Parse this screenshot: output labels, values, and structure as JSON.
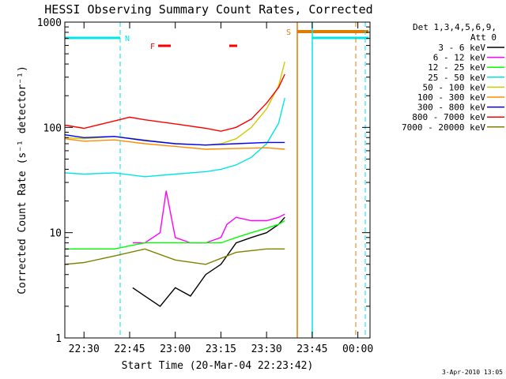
{
  "chart_data": {
    "type": "line",
    "title": "HESSI Observing Summary Count Rates, Corrected",
    "xlabel": "Start Time (20-Mar-04 22:23:42)",
    "ylabel": "Corrected Count Rate (s⁻¹ detector⁻¹)",
    "xlim": [
      "22:23:42",
      "00:04:00"
    ],
    "ylim": [
      1,
      1000
    ],
    "yscale": "log",
    "x_ticks": [
      "22:30",
      "22:45",
      "23:00",
      "23:15",
      "23:30",
      "23:45",
      "00:00"
    ],
    "y_ticks": [
      "1",
      "10",
      "100",
      "1000"
    ],
    "legend_header": [
      "Det 1,3,4,5,6,9,",
      "Att 0"
    ],
    "legend_position": "right",
    "footer": "3-Apr-2010 13:05",
    "flags": [
      {
        "label": "N",
        "color": "#00e5e5"
      },
      {
        "label": "F",
        "color": "#ff0000"
      },
      {
        "label": "S",
        "color": "#e07b00"
      }
    ],
    "series": [
      {
        "name": "3 - 6 keV",
        "color": "#000000",
        "x": [
          "22:46",
          "22:50",
          "22:55",
          "23:00",
          "23:05",
          "23:10",
          "23:15",
          "23:20",
          "23:25",
          "23:30",
          "23:34",
          "23:36"
        ],
        "y": [
          3,
          2.5,
          2,
          3,
          2.5,
          4,
          5,
          8,
          9,
          10,
          12,
          14
        ]
      },
      {
        "name": "6 - 12 keV",
        "color": "#ff00ff",
        "x": [
          "22:46",
          "22:50",
          "22:55",
          "22:57",
          "23:00",
          "23:05",
          "23:10",
          "23:15",
          "23:17",
          "23:20",
          "23:25",
          "23:30",
          "23:34",
          "23:36"
        ],
        "y": [
          8,
          8,
          10,
          25,
          9,
          8,
          8,
          9,
          12,
          14,
          13,
          13,
          14,
          15
        ]
      },
      {
        "name": "12 - 25 keV",
        "color": "#00ff00",
        "x": [
          "22:23:42",
          "22:30",
          "22:40",
          "22:45",
          "22:50",
          "23:00",
          "23:10",
          "23:15",
          "23:20",
          "23:25",
          "23:30",
          "23:34",
          "23:36"
        ],
        "y": [
          7,
          7,
          7,
          7.5,
          8,
          8,
          8,
          8,
          9,
          10,
          11,
          12,
          13
        ]
      },
      {
        "name": "25 - 50 keV",
        "color": "#00e5e5",
        "x": [
          "22:23:42",
          "22:30",
          "22:40",
          "22:50",
          "23:00",
          "23:10",
          "23:15",
          "23:20",
          "23:25",
          "23:30",
          "23:34",
          "23:36"
        ],
        "y": [
          37,
          36,
          37,
          34,
          36,
          38,
          40,
          44,
          52,
          70,
          110,
          190
        ]
      },
      {
        "name": "50 - 100 keV",
        "color": "#cccc00",
        "x": [
          "22:23:42",
          "22:30",
          "22:40",
          "22:50",
          "23:00",
          "23:10",
          "23:15",
          "23:20",
          "23:25",
          "23:30",
          "23:34",
          "23:36"
        ],
        "y": [
          80,
          78,
          82,
          76,
          70,
          68,
          70,
          78,
          100,
          150,
          250,
          420
        ]
      },
      {
        "name": "100 - 300 keV",
        "color": "#ff8c00",
        "x": [
          "22:23:42",
          "22:30",
          "22:40",
          "22:50",
          "23:00",
          "23:10",
          "23:20",
          "23:30",
          "23:36"
        ],
        "y": [
          78,
          74,
          76,
          70,
          66,
          62,
          63,
          64,
          62
        ]
      },
      {
        "name": "300 - 800 keV",
        "color": "#0000ff",
        "x": [
          "22:23:42",
          "22:30",
          "22:40",
          "22:50",
          "23:00",
          "23:10",
          "23:20",
          "23:30",
          "23:36"
        ],
        "y": [
          85,
          80,
          82,
          75,
          70,
          68,
          70,
          72,
          72
        ]
      },
      {
        "name": "800 - 7000 keV",
        "color": "#ff0000",
        "x": [
          "22:23:42",
          "22:30",
          "22:40",
          "22:45",
          "22:50",
          "23:00",
          "23:10",
          "23:15",
          "23:20",
          "23:25",
          "23:30",
          "23:34",
          "23:36"
        ],
        "y": [
          105,
          98,
          115,
          125,
          118,
          108,
          98,
          92,
          100,
          120,
          170,
          240,
          320
        ]
      },
      {
        "name": "7000 - 20000 keV",
        "color": "#808000",
        "x": [
          "22:23:42",
          "22:30",
          "22:40",
          "22:50",
          "23:00",
          "23:10",
          "23:20",
          "23:30",
          "23:36"
        ],
        "y": [
          5,
          5.2,
          6,
          7,
          5.5,
          5,
          6.5,
          7,
          7
        ]
      }
    ]
  }
}
